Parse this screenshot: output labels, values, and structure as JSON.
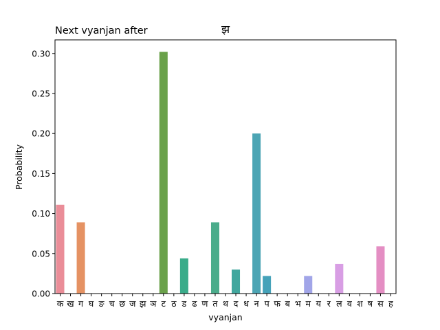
{
  "chart_data": {
    "type": "bar",
    "title_left": "Next vyanjan after",
    "title_center": "झ",
    "xlabel": "vyanjan",
    "ylabel": "Probability",
    "ylim": [
      0,
      0.317
    ],
    "yticks": [
      0.0,
      0.05,
      0.1,
      0.15,
      0.2,
      0.25,
      0.3
    ],
    "ytick_labels": [
      "0.00",
      "0.05",
      "0.10",
      "0.15",
      "0.20",
      "0.25",
      "0.30"
    ],
    "categories": [
      "क",
      "ख",
      "ग",
      "घ",
      "ङ",
      "च",
      "छ",
      "ज",
      "झ",
      "ञ",
      "ट",
      "ठ",
      "ड",
      "ढ",
      "ण",
      "त",
      "थ",
      "द",
      "ध",
      "न",
      "प",
      "फ",
      "ब",
      "भ",
      "म",
      "य",
      "र",
      "ल",
      "व",
      "श",
      "ष",
      "स",
      "ह"
    ],
    "values": [
      0.111,
      0.0,
      0.089,
      0.0,
      0.0,
      0.0,
      0.0,
      0.0,
      0.0,
      0.0,
      0.302,
      0.0,
      0.044,
      0.0,
      0.0,
      0.089,
      0.0,
      0.03,
      0.0,
      0.2,
      0.022,
      0.0,
      0.0,
      0.0,
      0.022,
      0.0,
      0.0,
      0.037,
      0.0,
      0.0,
      0.0,
      0.059,
      0.0
    ],
    "colors": [
      "#ea8d98",
      "#e98f7a",
      "#e59263",
      "#d79a49",
      "#c49f4b",
      "#b3a24d",
      "#a2a64f",
      "#8ca94f",
      "#72ad52",
      "#46b157",
      "#6aa14a",
      "#3db06e",
      "#3aac8a",
      "#39a98f",
      "#38a797",
      "#4aac8b",
      "#43aa9a",
      "#41a79e",
      "#3fa5a4",
      "#4ca5b4",
      "#45a2b9",
      "#42a0c0",
      "#4b9ed4",
      "#7099d3",
      "#a1a5e8",
      "#b2a3e9",
      "#c39bea",
      "#d89ee4",
      "#e594dd",
      "#e58fcf",
      "#e48ec3",
      "#e48ec3",
      "#e48ec3"
    ],
    "grid": false,
    "legend": "none"
  }
}
